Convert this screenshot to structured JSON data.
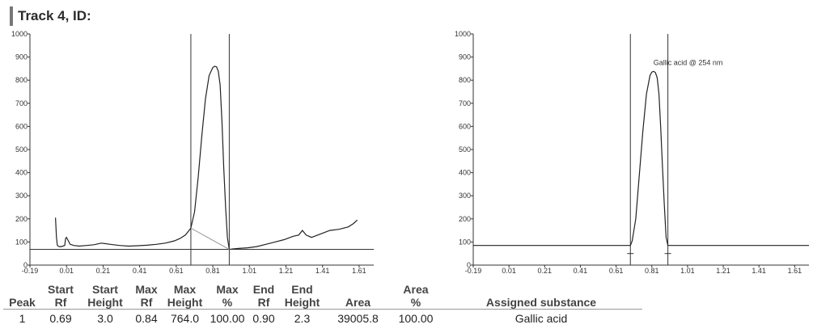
{
  "header": {
    "title": "Track 4, ID:"
  },
  "chart_data": [
    {
      "type": "line",
      "title": "",
      "xlabel": "",
      "ylabel": "",
      "xlim": [
        -0.19,
        1.69
      ],
      "ylim": [
        0,
        1000
      ],
      "x_ticks": [
        "-0.19",
        "0.01",
        "0.21",
        "0.41",
        "0.61",
        "0.81",
        "1.01",
        "1.21",
        "1.41",
        "1.61"
      ],
      "y_ticks": [
        "0",
        "100",
        "200",
        "300",
        "400",
        "500",
        "600",
        "700",
        "800",
        "900",
        "1000"
      ],
      "baseline_y": 68,
      "peak_window": [
        0.69,
        0.9
      ],
      "series": [
        {
          "x": [
            -0.05,
            -0.045,
            -0.04,
            -0.03,
            -0.02,
            -0.01,
            0.0,
            0.005,
            0.01,
            0.02,
            0.03,
            0.05,
            0.08,
            0.12,
            0.16,
            0.2,
            0.25,
            0.3,
            0.35,
            0.4,
            0.45,
            0.5,
            0.55,
            0.6,
            0.63,
            0.66,
            0.68,
            0.69,
            0.71,
            0.73,
            0.75,
            0.77,
            0.79,
            0.81,
            0.82,
            0.83,
            0.84,
            0.85,
            0.86,
            0.87,
            0.88,
            0.89,
            0.9,
            0.92,
            0.95,
            1.0,
            1.05,
            1.1,
            1.15,
            1.2,
            1.25,
            1.28,
            1.3,
            1.32,
            1.35,
            1.4,
            1.45,
            1.5,
            1.55,
            1.58,
            1.6
          ],
          "y": [
            205,
            120,
            85,
            80,
            80,
            82,
            85,
            115,
            120,
            105,
            90,
            85,
            82,
            85,
            88,
            95,
            90,
            85,
            82,
            84,
            86,
            90,
            95,
            105,
            115,
            130,
            150,
            160,
            230,
            380,
            560,
            720,
            820,
            855,
            860,
            858,
            840,
            780,
            620,
            420,
            250,
            120,
            68,
            70,
            72,
            75,
            80,
            90,
            100,
            110,
            125,
            130,
            150,
            130,
            120,
            135,
            150,
            155,
            165,
            180,
            195
          ]
        }
      ]
    },
    {
      "type": "line",
      "title": "",
      "xlabel": "",
      "ylabel": "",
      "xlim": [
        -0.19,
        1.69
      ],
      "ylim": [
        0,
        1000
      ],
      "x_ticks": [
        "-0.19",
        "0.01",
        "0.21",
        "0.41",
        "0.61",
        "0.81",
        "1.01",
        "1.21",
        "1.41",
        "1.61"
      ],
      "y_ticks": [
        "0",
        "100",
        "200",
        "300",
        "400",
        "500",
        "600",
        "700",
        "800",
        "900",
        "1000"
      ],
      "baseline_y": 85,
      "peak_window": [
        0.69,
        0.9
      ],
      "annotations": [
        {
          "text": "Gallic acid @ 254 nm",
          "x": 0.81,
          "y": 865
        }
      ],
      "series": [
        {
          "x": [
            -0.19,
            0.69,
            0.7,
            0.72,
            0.74,
            0.76,
            0.78,
            0.8,
            0.81,
            0.82,
            0.83,
            0.84,
            0.85,
            0.86,
            0.87,
            0.88,
            0.89,
            0.9,
            1.69
          ],
          "y": [
            85,
            85,
            105,
            200,
            390,
            580,
            740,
            820,
            835,
            838,
            833,
            810,
            740,
            590,
            420,
            260,
            120,
            85,
            85
          ]
        }
      ]
    }
  ],
  "results_table": {
    "headers": [
      [
        "",
        "Peak"
      ],
      [
        "Start",
        "Rf"
      ],
      [
        "Start",
        "Height"
      ],
      [
        "Max",
        "Rf"
      ],
      [
        "Max",
        "Height"
      ],
      [
        "Max",
        "%"
      ],
      [
        "End",
        "Rf"
      ],
      [
        "End",
        "Height"
      ],
      [
        "",
        "Area"
      ],
      [
        "Area",
        "%"
      ],
      [
        "",
        "Assigned substance"
      ]
    ],
    "rows": [
      [
        "1",
        "0.69",
        "3.0",
        "0.84",
        "764.0",
        "100.00",
        "0.90",
        "2.3",
        "39005.8",
        "100.00",
        "Gallic acid"
      ]
    ]
  }
}
